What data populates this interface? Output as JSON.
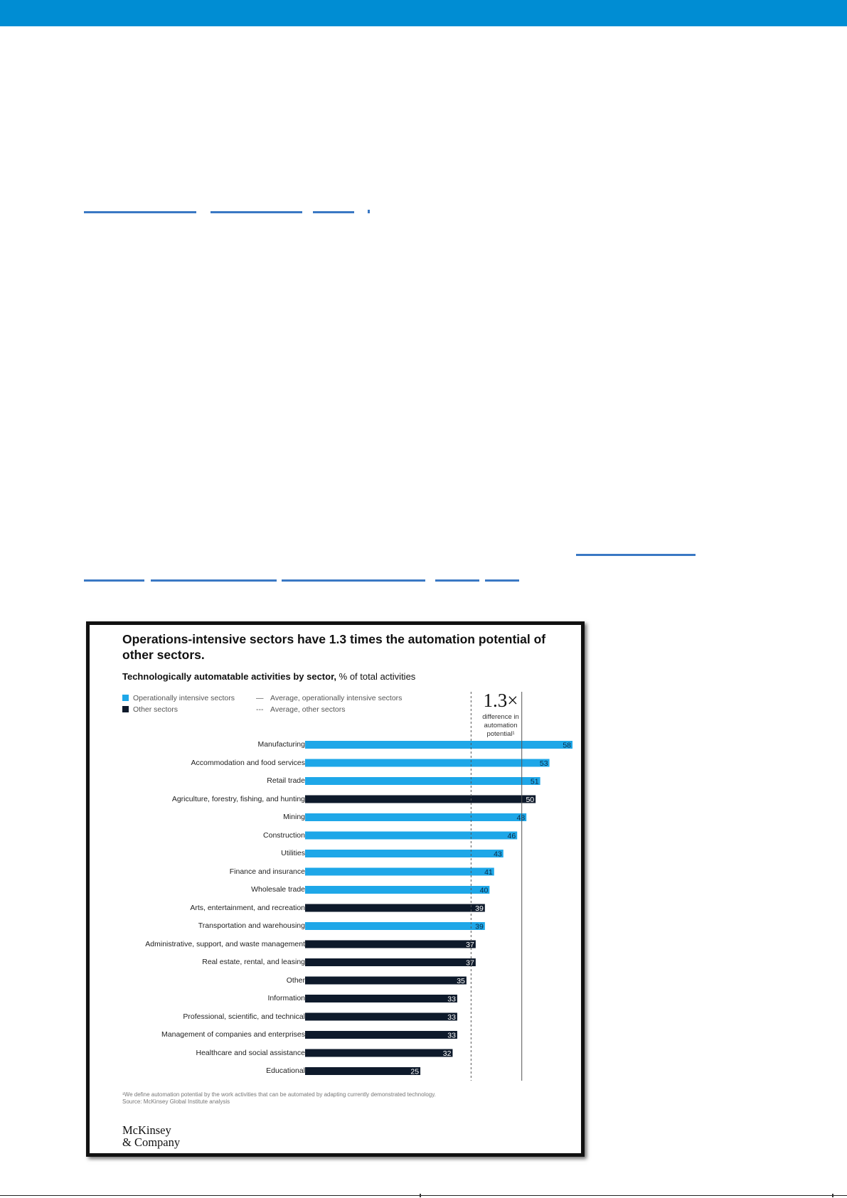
{
  "chart_data": {
    "type": "bar",
    "orientation": "horizontal",
    "title": "Operations-intensive sectors have 1.3 times the automation potential of other sectors.",
    "subtitle_bold": "Technologically automatable activities by sector,",
    "subtitle_rest": " % of total activities",
    "legend": [
      {
        "label": "Operationally intensive sectors",
        "kind": "swatch",
        "color": "#1ea7e8"
      },
      {
        "label": "Other sectors",
        "kind": "swatch",
        "color": "#0e1a2b"
      },
      {
        "label": "Average, operationally intensive sectors",
        "kind": "solid-line"
      },
      {
        "label": "Average, other sectors",
        "kind": "dashed-line"
      }
    ],
    "legend_position": "top-left",
    "colors": {
      "operational": "#1ea7e8",
      "other": "#0e1a2b"
    },
    "xlim": [
      0,
      58
    ],
    "grid": false,
    "averages": {
      "operationally_intensive": 47,
      "other_sectors": 36
    },
    "callout": {
      "big": "1.3×",
      "small": [
        "difference in",
        "automation",
        "potential¹"
      ]
    },
    "categories": [
      "Manufacturing",
      "Accommodation and food services",
      "Retail trade",
      "Agriculture, forestry, fishing, and hunting",
      "Mining",
      "Construction",
      "Utilities",
      "Finance and insurance",
      "Wholesale trade",
      "Arts, entertainment, and recreation",
      "Transportation and warehousing",
      "Administrative, support, and waste management",
      "Real estate, rental, and leasing",
      "Other",
      "Information",
      "Professional, scientific, and technical",
      "Management of companies and enterprises",
      "Healthcare and social assistance",
      "Educational"
    ],
    "values": [
      58,
      53,
      51,
      50,
      48,
      46,
      43,
      41,
      40,
      39,
      39,
      37,
      37,
      35,
      33,
      33,
      33,
      32,
      25
    ],
    "groups": [
      "operational",
      "operational",
      "operational",
      "other",
      "operational",
      "operational",
      "operational",
      "operational",
      "operational",
      "other",
      "operational",
      "other",
      "other",
      "other",
      "other",
      "other",
      "other",
      "other",
      "other"
    ],
    "footnote": "¹We define automation potential by the work activities that can be automated by adapting currently demonstrated technology.",
    "source": "Source: McKinsey Global Institute analysis",
    "logo": [
      "McKinsey",
      "& Company"
    ]
  }
}
